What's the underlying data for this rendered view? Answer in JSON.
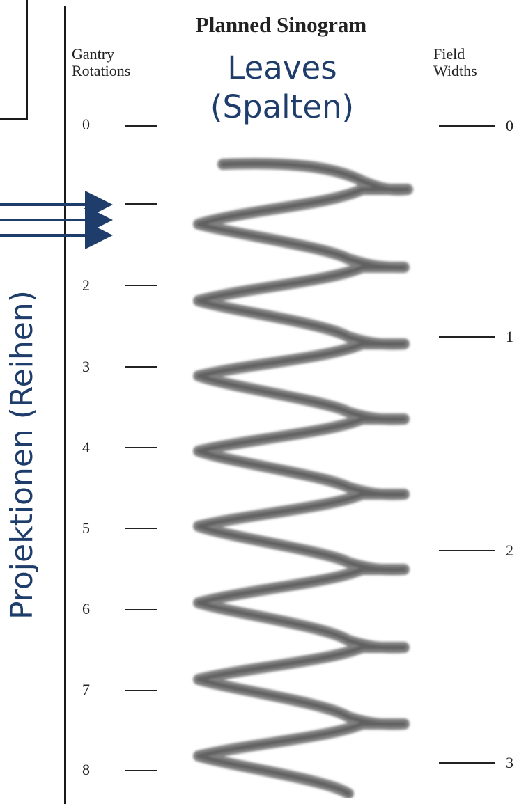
{
  "title": "Planned Sinogram",
  "left_header": [
    "Gantry",
    "Rotations"
  ],
  "right_header": [
    "Field",
    "Widths"
  ],
  "columns_label": [
    "Leaves",
    "(Spalten)"
  ],
  "rows_label": "Projektionen (Reihen)",
  "gantry_rotations": [
    "0",
    "1",
    "2",
    "3",
    "4",
    "5",
    "6",
    "7",
    "8"
  ],
  "field_widths": [
    "0",
    "1",
    "2",
    "3"
  ],
  "colors": {
    "annotation_blue": "#1f3d6b",
    "sinogram_gray": "#6b6b6b",
    "text": "#222222"
  }
}
